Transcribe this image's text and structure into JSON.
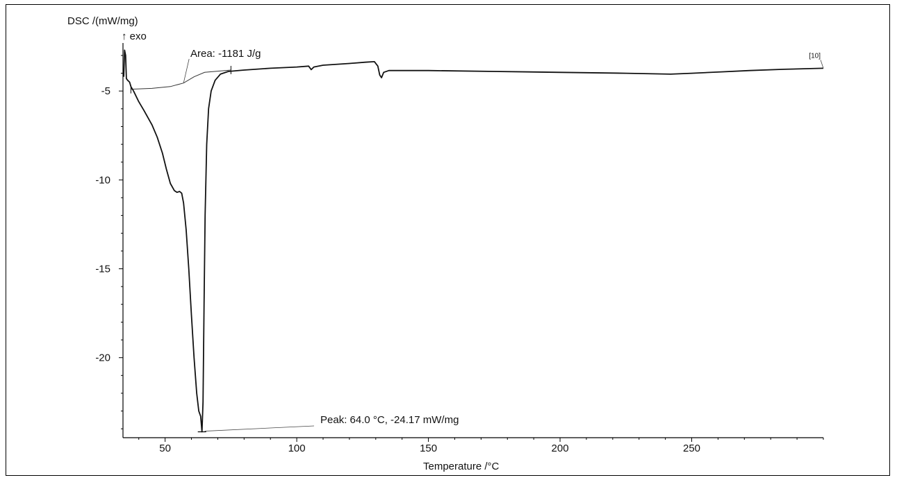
{
  "chart_data": {
    "type": "line",
    "title": "",
    "ylabel": "DSC /(mW/mg)",
    "ylabel_note": "↑ exo",
    "xlabel": "Temperature /°C",
    "xlim": [
      34,
      300
    ],
    "ylim": [
      -24.5,
      -2.3
    ],
    "x_ticks": [
      50,
      100,
      150,
      200,
      250
    ],
    "y_ticks": [
      -5,
      -10,
      -15,
      -20
    ],
    "grid": false,
    "series": [
      {
        "points": [
          [
            34.3,
            -4.2
          ],
          [
            34.6,
            -2.7
          ],
          [
            35.0,
            -3.0
          ],
          [
            35.3,
            -4.3
          ],
          [
            35.8,
            -4.4
          ],
          [
            36.5,
            -4.5
          ],
          [
            37.0,
            -4.75
          ],
          [
            38.0,
            -5.0
          ],
          [
            40.0,
            -5.6
          ],
          [
            42.0,
            -6.1
          ],
          [
            45.0,
            -6.9
          ],
          [
            47.0,
            -7.6
          ],
          [
            49.0,
            -8.5
          ],
          [
            50.5,
            -9.4
          ],
          [
            52.0,
            -10.2
          ],
          [
            53.5,
            -10.6
          ],
          [
            54.5,
            -10.7
          ],
          [
            55.5,
            -10.65
          ],
          [
            56.3,
            -10.75
          ],
          [
            57.0,
            -11.3
          ],
          [
            58.0,
            -12.8
          ],
          [
            59.0,
            -15.0
          ],
          [
            60.0,
            -17.6
          ],
          [
            61.0,
            -20.0
          ],
          [
            62.0,
            -22.0
          ],
          [
            62.8,
            -23.0
          ],
          [
            63.5,
            -23.3
          ],
          [
            64.0,
            -24.17
          ],
          [
            64.4,
            -22.5
          ],
          [
            64.8,
            -17.0
          ],
          [
            65.2,
            -12.0
          ],
          [
            65.8,
            -8.0
          ],
          [
            66.5,
            -6.0
          ],
          [
            67.5,
            -5.0
          ],
          [
            69.0,
            -4.4
          ],
          [
            71.0,
            -4.05
          ],
          [
            74.0,
            -3.9
          ],
          [
            80.0,
            -3.82
          ],
          [
            90.0,
            -3.72
          ],
          [
            100.0,
            -3.65
          ],
          [
            104.5,
            -3.6
          ],
          [
            105.5,
            -3.8
          ],
          [
            106.5,
            -3.65
          ],
          [
            110.0,
            -3.55
          ],
          [
            120.0,
            -3.45
          ],
          [
            126.0,
            -3.38
          ],
          [
            129.5,
            -3.35
          ],
          [
            130.8,
            -3.6
          ],
          [
            131.5,
            -4.1
          ],
          [
            132.2,
            -4.25
          ],
          [
            133.0,
            -3.95
          ],
          [
            135.0,
            -3.85
          ],
          [
            150.0,
            -3.85
          ],
          [
            175.0,
            -3.9
          ],
          [
            200.0,
            -3.95
          ],
          [
            225.0,
            -4.0
          ],
          [
            242.0,
            -4.05
          ],
          [
            250.0,
            -4.0
          ],
          [
            262.0,
            -3.92
          ],
          [
            272.0,
            -3.85
          ],
          [
            285.0,
            -3.78
          ],
          [
            300.0,
            -3.72
          ]
        ]
      }
    ],
    "baseline": {
      "points": [
        [
          37.0,
          -4.9
        ],
        [
          45.0,
          -4.85
        ],
        [
          52.0,
          -4.75
        ],
        [
          57.0,
          -4.55
        ],
        [
          61.0,
          -4.2
        ],
        [
          65.0,
          -3.95
        ],
        [
          75.0,
          -3.82
        ]
      ]
    },
    "baseline_end_tick_label": "[10]",
    "annotations": [
      {
        "text": "Area: -1181 J/g",
        "x": 57.0,
        "y": -4.55
      },
      {
        "text": "Peak: 64.0 °C, -24.17 mW/mg",
        "x": 64.0,
        "y": -24.17
      }
    ],
    "colors": {
      "line": "#111111",
      "baseline": "#333333"
    }
  }
}
